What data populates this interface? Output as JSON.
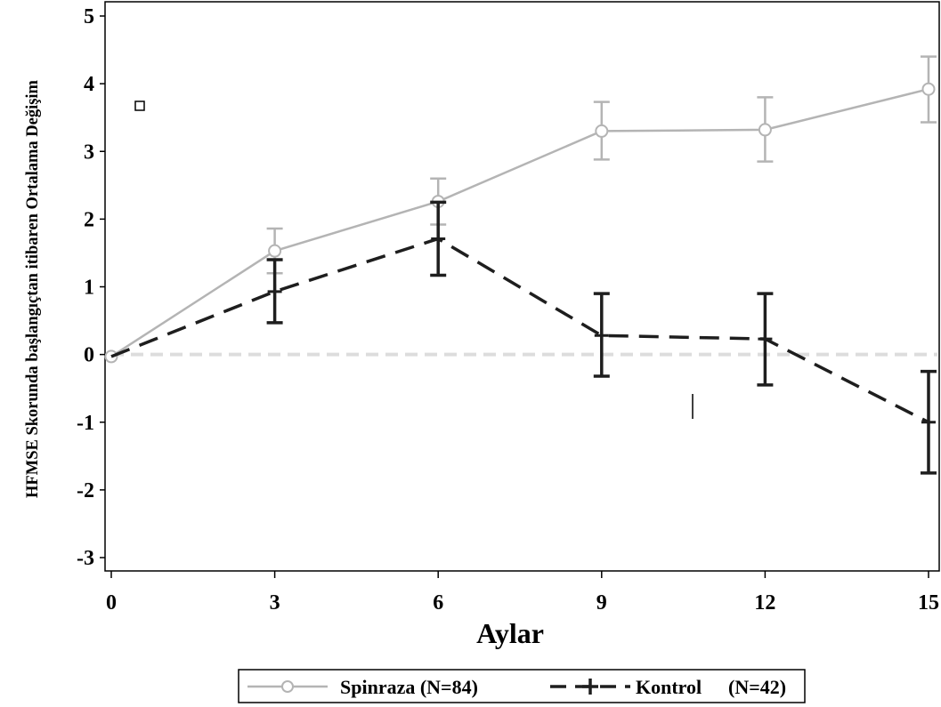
{
  "chart_data": {
    "type": "line",
    "title": "",
    "xlabel": "Aylar",
    "ylabel": "HFMSE Skorunda başlangıçtan itibaren Ortalama Değişim",
    "x": [
      0,
      3,
      6,
      9,
      12,
      15
    ],
    "xticks": [
      "0",
      "3",
      "6",
      "9",
      "12",
      "15"
    ],
    "yticks": [
      "5",
      "4",
      "3",
      "2",
      "1",
      "0",
      "-1",
      "-2",
      "-3"
    ],
    "xlim": [
      0,
      15
    ],
    "ylim": [
      -3,
      5
    ],
    "reference_line_y": 0,
    "grid": false,
    "legend_position": "bottom",
    "series": [
      {
        "name": "Spinraza (N=84)",
        "color": "#b4b4b4",
        "line": "solid",
        "marker": "circle",
        "values": [
          -0.03,
          1.53,
          2.26,
          3.3,
          3.32,
          3.92
        ],
        "error_low": [
          null,
          1.2,
          1.92,
          2.88,
          2.85,
          3.43
        ],
        "error_high": [
          null,
          1.86,
          2.6,
          3.73,
          3.8,
          4.4
        ]
      },
      {
        "name": "Kontrol",
        "name_suffix": "(N=42)",
        "color": "#1e1e1e",
        "line": "dashed",
        "marker": "plus",
        "values": [
          -0.03,
          0.93,
          1.71,
          0.28,
          0.23,
          -1.0
        ],
        "error_low": [
          null,
          0.47,
          1.17,
          -0.32,
          -0.45,
          -1.75
        ],
        "error_high": [
          null,
          1.4,
          2.25,
          0.9,
          0.9,
          -0.25
        ]
      }
    ]
  }
}
